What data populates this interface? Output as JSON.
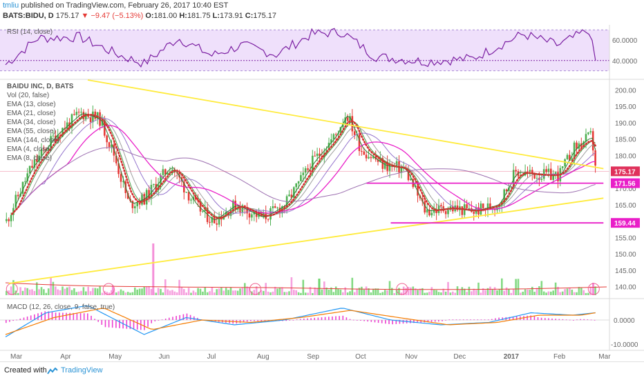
{
  "header": {
    "author": "tmliu",
    "published_text": "published on TradingView.com, February 26, 2017 10:40 EST",
    "symbol": "BATS:BIDU, D",
    "last": "175.17",
    "change_arrow": "▼",
    "change": "−9.47 (−5.13%)",
    "o_label": "O:",
    "o": "181.00",
    "h_label": "H:",
    "h": "181.75",
    "l_label": "L:",
    "l": "173.91",
    "c_label": "C:",
    "c": "175.17"
  },
  "rsi_panel": {
    "label": "RSI (14, close)",
    "ticks": [
      "60.0000",
      "40.0000"
    ]
  },
  "price_panel": {
    "legend": [
      "BAIDU INC, D, BATS",
      "Vol (20, false)",
      "EMA (13, close)",
      "EMA (21, close)",
      "EMA (34, close)",
      "EMA (55, close)",
      "EMA (144, close)",
      "EMA (4, close)",
      "EMA (8, close)"
    ],
    "ticks": [
      "200.00",
      "195.00",
      "190.00",
      "185.00",
      "180.00",
      "175.00",
      "170.00",
      "165.00",
      "160.00",
      "155.00",
      "150.00",
      "145.00",
      "140.00"
    ],
    "price_tags": [
      {
        "text": "175.17",
        "color": "#e0315b"
      },
      {
        "text": "171.56",
        "color": "#e91ec8"
      },
      {
        "text": "159.44",
        "color": "#e91ec8"
      }
    ]
  },
  "macd_panel": {
    "label": "MACD (12, 26, close, 9, false, true)",
    "ticks": [
      "0.0000",
      "-10.0000"
    ]
  },
  "time_axis": [
    "Mar",
    "Apr",
    "May",
    "Jun",
    "Jul",
    "Aug",
    "Sep",
    "Oct",
    "Nov",
    "Dec",
    "2017",
    "Feb",
    "Mar"
  ],
  "footer": {
    "created_with": "Created with",
    "brand": "TradingView"
  },
  "colors": {
    "up": "#4caf50",
    "down": "#e53935",
    "trendline": "#ffeb3b",
    "support": "#e91ec8",
    "rsi_line": "#7b1fa2",
    "macd_line": "#2196f3",
    "signal_line": "#f57c00",
    "histogram": "#e91ec8"
  },
  "chart_data": [
    {
      "type": "line",
      "title": "BAIDU INC, D, BATS",
      "x": [
        "Mar",
        "Apr",
        "May",
        "Jun",
        "Jul",
        "Aug",
        "Sep",
        "Oct",
        "Nov",
        "Dec",
        "2017",
        "Feb",
        "Mar"
      ],
      "series": [
        {
          "name": "BAIDU INC, D, BATS",
          "values": [
            {
              "date": "2016-02-24",
              "close": 160
            },
            {
              "date": "2016-03-10",
              "close": 176
            },
            {
              "date": "2016-03-25",
              "close": 186
            },
            {
              "date": "2016-04-10",
              "close": 193
            },
            {
              "date": "2016-04-22",
              "close": 191
            },
            {
              "date": "2016-05-01",
              "close": 180
            },
            {
              "date": "2016-05-10",
              "close": 165
            },
            {
              "date": "2016-05-20",
              "close": 167
            },
            {
              "date": "2016-06-05",
              "close": 177
            },
            {
              "date": "2016-06-20",
              "close": 165
            },
            {
              "date": "2016-07-01",
              "close": 160
            },
            {
              "date": "2016-07-15",
              "close": 165
            },
            {
              "date": "2016-08-01",
              "close": 161
            },
            {
              "date": "2016-08-15",
              "close": 165
            },
            {
              "date": "2016-09-01",
              "close": 178
            },
            {
              "date": "2016-09-15",
              "close": 186
            },
            {
              "date": "2016-09-22",
              "close": 193
            },
            {
              "date": "2016-10-01",
              "close": 182
            },
            {
              "date": "2016-10-15",
              "close": 177
            },
            {
              "date": "2016-10-28",
              "close": 176
            },
            {
              "date": "2016-11-10",
              "close": 163
            },
            {
              "date": "2016-11-25",
              "close": 164
            },
            {
              "date": "2016-12-10",
              "close": 163
            },
            {
              "date": "2016-12-25",
              "close": 165
            },
            {
              "date": "2017-01-05",
              "close": 175
            },
            {
              "date": "2017-01-20",
              "close": 174
            },
            {
              "date": "2017-02-01",
              "close": 174
            },
            {
              "date": "2017-02-10",
              "close": 182
            },
            {
              "date": "2017-02-21",
              "close": 186
            },
            {
              "date": "2017-02-24",
              "close": 175.17
            }
          ]
        }
      ],
      "ylim": [
        137,
        203
      ],
      "lines": [
        {
          "name": "resistance",
          "from": {
            "date": "2016-04-15",
            "value": 203
          },
          "to": {
            "date": "2017-03-01",
            "value": 176
          }
        },
        {
          "name": "support-trend",
          "from": {
            "date": "2016-02-26",
            "value": 141
          },
          "to": {
            "date": "2017-03-01",
            "value": 167
          }
        },
        {
          "name": "support-1",
          "from": {
            "date": "2016-10-05",
            "value": 171.56
          },
          "to": {
            "date": "2017-03-01",
            "value": 171.56
          }
        },
        {
          "name": "support-2",
          "from": {
            "date": "2016-10-20",
            "value": 159.44
          },
          "to": {
            "date": "2017-03-01",
            "value": 159.44
          }
        }
      ],
      "grid": false
    },
    {
      "type": "line",
      "title": "RSI (14, close)",
      "series": [
        {
          "name": "RSI (14, close)",
          "values": [
            {
              "date": "2016-02-24",
              "value": 36
            },
            {
              "date": "2016-03-15",
              "value": 62
            },
            {
              "date": "2016-04-10",
              "value": 63
            },
            {
              "date": "2016-05-05",
              "value": 45
            },
            {
              "date": "2016-05-20",
              "value": 37
            },
            {
              "date": "2016-06-10",
              "value": 62
            },
            {
              "date": "2016-07-01",
              "value": 45
            },
            {
              "date": "2016-07-20",
              "value": 55
            },
            {
              "date": "2016-08-10",
              "value": 46
            },
            {
              "date": "2016-09-01",
              "value": 66
            },
            {
              "date": "2016-09-20",
              "value": 68
            },
            {
              "date": "2016-10-10",
              "value": 44
            },
            {
              "date": "2016-11-10",
              "value": 39
            },
            {
              "date": "2016-12-10",
              "value": 42
            },
            {
              "date": "2017-01-10",
              "value": 66
            },
            {
              "date": "2017-02-01",
              "value": 55
            },
            {
              "date": "2017-02-20",
              "value": 70
            },
            {
              "date": "2017-02-24",
              "value": 40
            }
          ]
        }
      ],
      "ylim": [
        25,
        75
      ]
    },
    {
      "type": "line",
      "title": "MACD (12, 26, close, 9, false, true)",
      "series": [
        {
          "name": "MACD",
          "values": [
            {
              "date": "2016-02-24",
              "value": -7
            },
            {
              "date": "2016-03-20",
              "value": 3
            },
            {
              "date": "2016-04-15",
              "value": 6
            },
            {
              "date": "2016-05-20",
              "value": -6
            },
            {
              "date": "2016-06-15",
              "value": 1
            },
            {
              "date": "2016-07-15",
              "value": -2
            },
            {
              "date": "2016-08-15",
              "value": 0
            },
            {
              "date": "2016-09-20",
              "value": 5
            },
            {
              "date": "2016-10-20",
              "value": 0
            },
            {
              "date": "2016-11-20",
              "value": -2
            },
            {
              "date": "2016-12-20",
              "value": -1
            },
            {
              "date": "2017-01-15",
              "value": 3
            },
            {
              "date": "2017-02-10",
              "value": 2
            },
            {
              "date": "2017-02-24",
              "value": 3
            }
          ]
        },
        {
          "name": "Signal",
          "values": [
            {
              "date": "2016-02-24",
              "value": -6
            },
            {
              "date": "2016-03-25",
              "value": 1
            },
            {
              "date": "2016-04-25",
              "value": 5
            },
            {
              "date": "2016-05-25",
              "value": -4
            },
            {
              "date": "2016-06-25",
              "value": 0
            },
            {
              "date": "2016-07-25",
              "value": -1
            },
            {
              "date": "2016-08-25",
              "value": 1
            },
            {
              "date": "2016-09-25",
              "value": 4
            },
            {
              "date": "2016-10-25",
              "value": 1
            },
            {
              "date": "2016-11-25",
              "value": -2
            },
            {
              "date": "2016-12-25",
              "value": -1
            },
            {
              "date": "2017-01-20",
              "value": 2
            },
            {
              "date": "2017-02-15",
              "value": 2
            },
            {
              "date": "2017-02-24",
              "value": 3
            }
          ]
        }
      ],
      "ylim": [
        -12,
        8
      ]
    }
  ]
}
